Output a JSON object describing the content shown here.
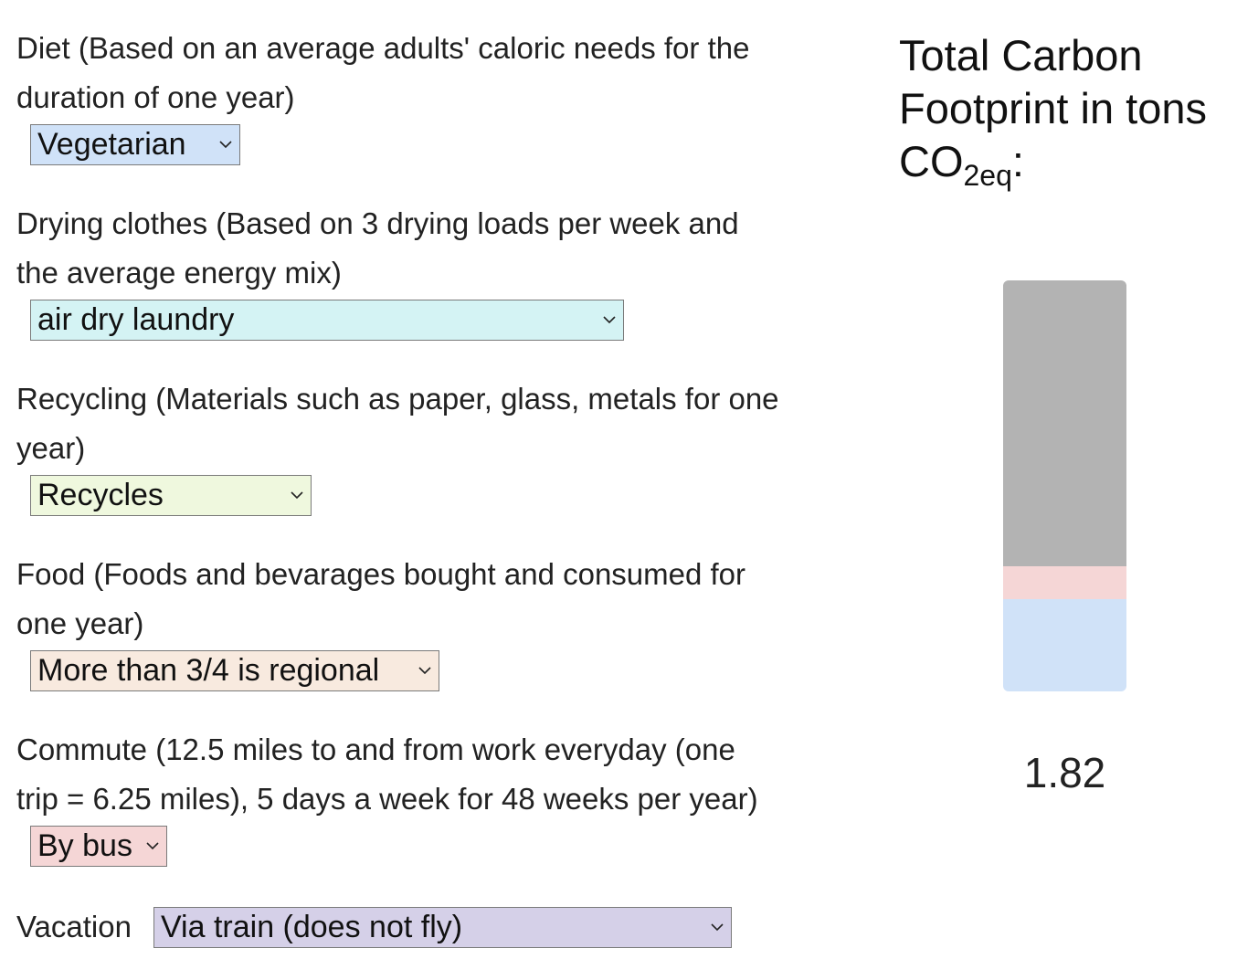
{
  "questions": [
    {
      "id": "diet",
      "label_line1": "Diet (Based on an average adults' caloric needs for the",
      "label_line2": "duration of one year)",
      "selected": "Vegetarian",
      "color": "#d0e2f8"
    },
    {
      "id": "drying",
      "label_line1": "Drying clothes (Based on 3 drying loads per week and",
      "label_line2": "the average energy mix)",
      "selected": "air dry laundry",
      "color": "#d4f3f4"
    },
    {
      "id": "recycling",
      "label_line1": "Recycling (Materials such as paper, glass, metals for one",
      "label_line2": "year)",
      "selected": "Recycles",
      "color": "#eff8de"
    },
    {
      "id": "food",
      "label_line1": "Food (Foods and bevarages bought and consumed for",
      "label_line2": "one year)",
      "selected": "More than 3/4 is regional",
      "color": "#f8eadf"
    },
    {
      "id": "commute",
      "label_line1": "Commute (12.5 miles to and from work everyday (one",
      "label_line2": "trip = 6.25 miles), 5 days a week for 48 weeks per year)",
      "selected": "By bus",
      "color": "#f5d6d6"
    }
  ],
  "vacation": {
    "label": "Vacation",
    "selected": "Via train (does not fly)",
    "color": "#d5d0e8"
  },
  "panel": {
    "title_line1": "Total Carbon",
    "title_line2": "Footprint in tons",
    "title_co": "CO",
    "title_sub": "2eq",
    "title_colon": ":",
    "total": "1.82"
  },
  "bar": {
    "segments": [
      {
        "name": "remaining",
        "fraction": 0.695,
        "color": "#b3b3b3"
      },
      {
        "name": "commute",
        "fraction": 0.08,
        "color": "#f5d6d6"
      },
      {
        "name": "diet",
        "fraction": 0.225,
        "color": "#d0e2f8"
      }
    ]
  },
  "icons": {
    "select_arrow": "chevron-down-icon"
  }
}
